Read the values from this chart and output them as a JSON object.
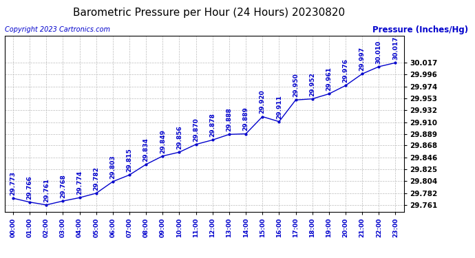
{
  "title": "Barometric Pressure per Hour (24 Hours) 20230820",
  "ylabel": "Pressure (Inches/Hg)",
  "copyright": "Copyright 2023 Cartronics.com",
  "hours": [
    "00:00",
    "01:00",
    "02:00",
    "03:00",
    "04:00",
    "05:00",
    "06:00",
    "07:00",
    "08:00",
    "09:00",
    "10:00",
    "11:00",
    "12:00",
    "13:00",
    "14:00",
    "15:00",
    "16:00",
    "17:00",
    "18:00",
    "19:00",
    "20:00",
    "21:00",
    "22:00",
    "23:00"
  ],
  "values": [
    29.773,
    29.766,
    29.761,
    29.768,
    29.774,
    29.782,
    29.803,
    29.815,
    29.834,
    29.849,
    29.856,
    29.87,
    29.878,
    29.888,
    29.889,
    29.92,
    29.911,
    29.95,
    29.952,
    29.961,
    29.976,
    29.997,
    30.01,
    30.017
  ],
  "line_color": "#0000cc",
  "marker_color": "#0000cc",
  "bg_color": "#ffffff",
  "grid_color": "#bbbbbb",
  "title_color": "#000000",
  "ylabel_color": "#0000cc",
  "copyright_color": "#0000cc",
  "xtick_color": "#0000cc",
  "ytick_color": "#000000",
  "yticks": [
    29.761,
    29.782,
    29.804,
    29.825,
    29.846,
    29.868,
    29.889,
    29.91,
    29.932,
    29.953,
    29.974,
    29.996,
    30.017
  ],
  "ylim": [
    29.749,
    30.065
  ],
  "label_fontsize": 6.5,
  "title_fontsize": 11,
  "ylabel_fontsize": 8.5,
  "copyright_fontsize": 7,
  "xtick_fontsize": 6.5,
  "ytick_fontsize": 7.5
}
